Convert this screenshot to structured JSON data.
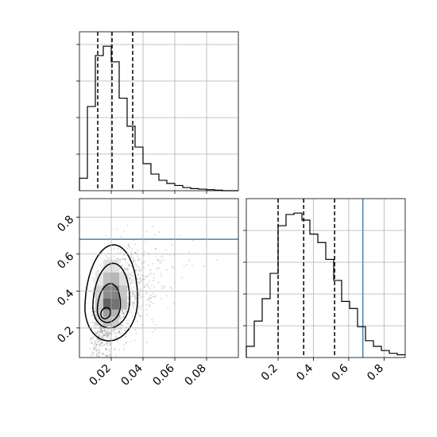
{
  "chart_data": {
    "type": "corner",
    "parameters": [
      "",
      ""
    ],
    "truth_color": "#4682b4",
    "panels": [
      {
        "id": "hist_x",
        "type": "histogram",
        "xlim": [
          0.0,
          0.1
        ],
        "x_ticks": [
          0.02,
          0.04,
          0.06,
          0.08
        ],
        "bins": [
          0.0,
          0.005,
          0.01,
          0.015,
          0.02,
          0.025,
          0.03,
          0.035,
          0.04,
          0.045,
          0.05,
          0.055,
          0.06,
          0.065,
          0.07,
          0.075,
          0.08,
          0.085,
          0.09,
          0.095,
          0.1
        ],
        "counts": [
          12,
          81,
          130,
          139,
          124,
          89,
          62,
          42,
          26,
          16,
          10,
          7,
          5,
          3,
          2,
          1.5,
          1,
          0.5,
          0,
          0
        ],
        "quantiles": [
          0.0115,
          0.0205,
          0.0335
        ]
      },
      {
        "id": "joint",
        "type": "2d-density",
        "xlim": [
          0.0,
          0.1
        ],
        "ylim": [
          0.04,
          0.9
        ],
        "x_ticks": [
          0.02,
          0.04,
          0.06,
          0.08
        ],
        "x_tick_labels": [
          "0.02",
          "0.04",
          "0.06",
          "0.08"
        ],
        "y_ticks": [
          0.2,
          0.4,
          0.6,
          0.8
        ],
        "y_tick_labels": [
          "0.2",
          "0.4",
          "0.6",
          "0.8"
        ],
        "truth_y": 0.68,
        "peak": [
          0.018,
          0.28
        ],
        "contour_levels": [
          "0.5",
          "1",
          "1.5",
          "2"
        ]
      },
      {
        "id": "hist_y",
        "type": "histogram",
        "xlim": [
          0.02,
          0.92
        ],
        "x_ticks": [
          0.2,
          0.4,
          0.6,
          0.8
        ],
        "x_tick_labels": [
          "0.2",
          "0.4",
          "0.6",
          "0.8"
        ],
        "bins": [
          0.02,
          0.065,
          0.11,
          0.155,
          0.2,
          0.245,
          0.29,
          0.335,
          0.38,
          0.425,
          0.47,
          0.515,
          0.56,
          0.605,
          0.65,
          0.695,
          0.74,
          0.785,
          0.83,
          0.875,
          0.92
        ],
        "counts": [
          8,
          26,
          42,
          60,
          94,
          102,
          103,
          98,
          88,
          82,
          70,
          55,
          40,
          35,
          22,
          12,
          8,
          5,
          3,
          2
        ],
        "quantiles": [
          0.2,
          0.345,
          0.52
        ],
        "truth_x": 0.68
      }
    ]
  }
}
